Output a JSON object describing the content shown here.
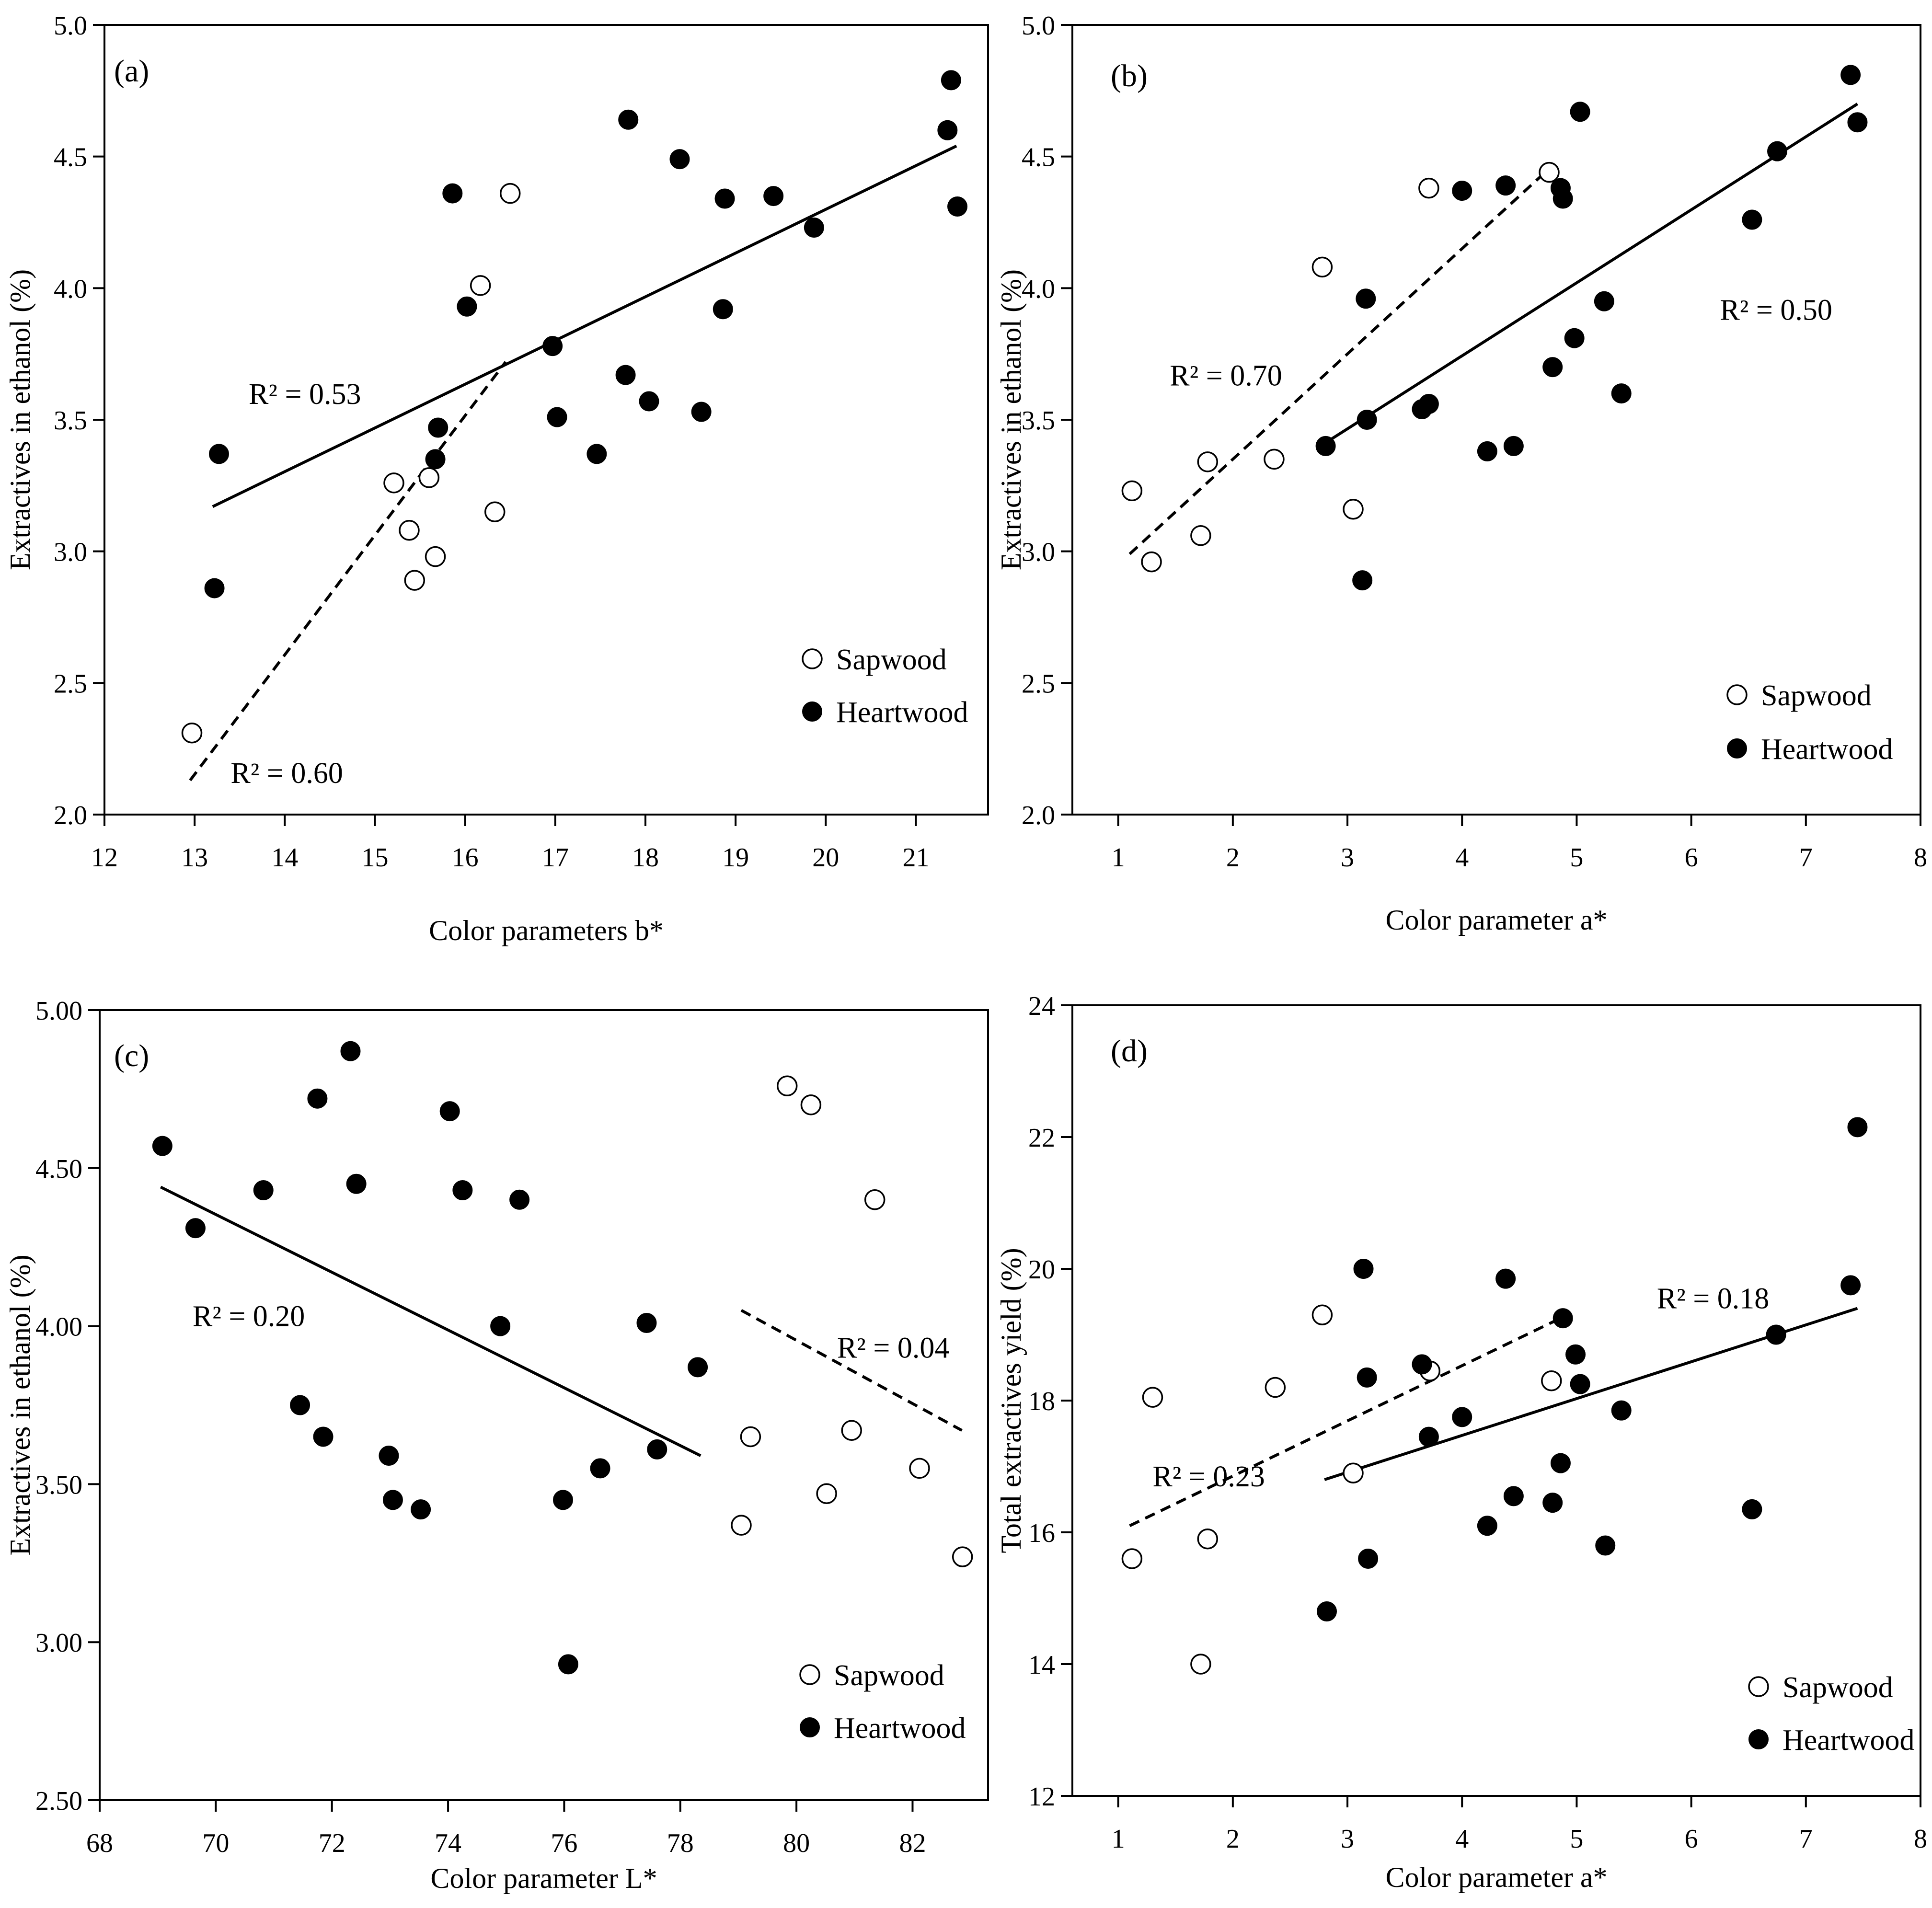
{
  "chart_data": [
    {
      "id": "a",
      "type": "scatter",
      "panel_label": "(a)",
      "xlabel": "Color parameters b*",
      "ylabel": "Extractives in ethanol (%)",
      "xlim": [
        12,
        21.8
      ],
      "ylim": [
        2.0,
        5.0
      ],
      "xticks": [
        12,
        13,
        14,
        15,
        16,
        17,
        18,
        19,
        20,
        21
      ],
      "yticks": [
        2.0,
        2.5,
        3.0,
        3.5,
        4.0,
        4.5,
        5.0
      ],
      "xtick_labels": [
        "12",
        "13",
        "14",
        "15",
        "16",
        "17",
        "18",
        "19",
        "20",
        "21"
      ],
      "ytick_labels": [
        "2.0",
        "2.5",
        "3.0",
        "3.5",
        "4.0",
        "4.5",
        "5.0"
      ],
      "legend": {
        "position": "bottom-right",
        "sapwood": "Sapwood",
        "heartwood": "Heartwood"
      },
      "series": [
        {
          "name": "Sapwood",
          "marker": "open-circle",
          "points": [
            [
              12.97,
              2.31
            ],
            [
              15.21,
              3.26
            ],
            [
              15.38,
              3.08
            ],
            [
              15.44,
              2.89
            ],
            [
              15.6,
              3.28
            ],
            [
              15.67,
              2.98
            ],
            [
              16.17,
              4.01
            ],
            [
              16.33,
              3.15
            ],
            [
              16.5,
              4.36
            ]
          ]
        },
        {
          "name": "Heartwood",
          "marker": "filled-circle",
          "points": [
            [
              13.22,
              2.86
            ],
            [
              13.27,
              3.37
            ],
            [
              15.67,
              3.35
            ],
            [
              15.7,
              3.47
            ],
            [
              15.86,
              4.36
            ],
            [
              16.02,
              3.93
            ],
            [
              16.97,
              3.78
            ],
            [
              17.02,
              3.51
            ],
            [
              17.46,
              3.37
            ],
            [
              17.78,
              3.67
            ],
            [
              17.81,
              4.64
            ],
            [
              18.04,
              3.57
            ],
            [
              18.38,
              4.49
            ],
            [
              18.62,
              3.53
            ],
            [
              18.86,
              3.92
            ],
            [
              18.88,
              4.34
            ],
            [
              19.42,
              4.35
            ],
            [
              19.87,
              4.23
            ],
            [
              21.35,
              4.6
            ],
            [
              21.39,
              4.79
            ],
            [
              21.46,
              4.31
            ]
          ]
        }
      ],
      "fits": [
        {
          "series": "Heartwood",
          "style": "solid",
          "x": [
            13.2,
            21.45
          ],
          "y": [
            3.17,
            4.54
          ]
        },
        {
          "series": "Sapwood",
          "style": "dashed",
          "x": [
            12.95,
            16.45
          ],
          "y": [
            2.13,
            3.72
          ]
        }
      ],
      "annotations": [
        {
          "text": "R² = 0.53",
          "x": 13.6,
          "y": 3.56
        },
        {
          "text": "R² = 0.60",
          "x": 13.4,
          "y": 2.12
        }
      ]
    },
    {
      "id": "b",
      "type": "scatter",
      "panel_label": "(b)",
      "xlabel": "Color parameter a*",
      "ylabel": "Extractives in ethanol (%)",
      "xlim": [
        0.6,
        8.0
      ],
      "ylim": [
        2.0,
        5.0
      ],
      "xticks": [
        1,
        2,
        3,
        4,
        5,
        6,
        7,
        8
      ],
      "yticks": [
        2.0,
        2.5,
        3.0,
        3.5,
        4.0,
        4.5,
        5.0
      ],
      "xtick_labels": [
        "1",
        "2",
        "3",
        "4",
        "5",
        "6",
        "7",
        "8"
      ],
      "ytick_labels": [
        "2.0",
        "2.5",
        "3.0",
        "3.5",
        "4.0",
        "4.5",
        "5.0"
      ],
      "legend": {
        "position": "bottom-right",
        "sapwood": "Sapwood",
        "heartwood": "Heartwood"
      },
      "series": [
        {
          "name": "Sapwood",
          "marker": "open-circle",
          "points": [
            [
              1.12,
              3.23
            ],
            [
              1.29,
              2.96
            ],
            [
              1.72,
              3.06
            ],
            [
              1.78,
              3.34
            ],
            [
              2.36,
              3.35
            ],
            [
              2.78,
              4.08
            ],
            [
              3.05,
              3.16
            ],
            [
              3.71,
              4.38
            ],
            [
              4.76,
              4.44
            ]
          ]
        },
        {
          "name": "Heartwood",
          "marker": "filled-circle",
          "points": [
            [
              2.81,
              3.4
            ],
            [
              3.13,
              2.89
            ],
            [
              3.16,
              3.96
            ],
            [
              3.17,
              3.5
            ],
            [
              3.65,
              3.54
            ],
            [
              3.71,
              3.56
            ],
            [
              4.0,
              4.37
            ],
            [
              4.22,
              3.38
            ],
            [
              4.38,
              4.39
            ],
            [
              4.45,
              3.4
            ],
            [
              4.79,
              3.7
            ],
            [
              4.86,
              4.38
            ],
            [
              4.88,
              4.34
            ],
            [
              4.98,
              3.81
            ],
            [
              5.03,
              4.67
            ],
            [
              5.24,
              3.95
            ],
            [
              5.39,
              3.6
            ],
            [
              6.53,
              4.26
            ],
            [
              6.75,
              4.52
            ],
            [
              7.39,
              4.81
            ],
            [
              7.45,
              4.63
            ]
          ]
        }
      ],
      "fits": [
        {
          "series": "Heartwood",
          "style": "solid",
          "x": [
            2.8,
            7.45
          ],
          "y": [
            3.41,
            4.7
          ]
        },
        {
          "series": "Sapwood",
          "style": "dashed",
          "x": [
            1.1,
            4.8
          ],
          "y": [
            2.99,
            4.47
          ]
        }
      ],
      "annotations": [
        {
          "text": "R² = 0.70",
          "x": 1.45,
          "y": 3.63
        },
        {
          "text": "R² = 0.50",
          "x": 6.25,
          "y": 3.88
        }
      ]
    },
    {
      "id": "c",
      "type": "scatter",
      "panel_label": "(c)",
      "xlabel": "Color parameter L*",
      "ylabel": "Extractives in ethanol (%)",
      "xlim": [
        68,
        83.3
      ],
      "ylim": [
        2.5,
        5.0
      ],
      "xticks": [
        68,
        70,
        72,
        74,
        76,
        78,
        80,
        82
      ],
      "yticks": [
        2.5,
        3.0,
        3.5,
        4.0,
        4.5,
        5.0
      ],
      "xtick_labels": [
        "68",
        "70",
        "72",
        "74",
        "76",
        "78",
        "80",
        "82"
      ],
      "ytick_labels": [
        "2.50",
        "3.00",
        "3.50",
        "4.00",
        "4.50",
        "5.00"
      ],
      "legend": {
        "position": "bottom-right",
        "sapwood": "Sapwood",
        "heartwood": "Heartwood"
      },
      "series": [
        {
          "name": "Sapwood",
          "marker": "open-circle",
          "points": [
            [
              79.05,
              3.37
            ],
            [
              79.21,
              3.65
            ],
            [
              79.84,
              4.76
            ],
            [
              80.25,
              4.7
            ],
            [
              80.52,
              3.47
            ],
            [
              80.95,
              3.67
            ],
            [
              81.35,
              4.4
            ],
            [
              82.12,
              3.55
            ],
            [
              82.86,
              3.27
            ]
          ]
        },
        {
          "name": "Heartwood",
          "marker": "filled-circle",
          "points": [
            [
              69.08,
              4.57
            ],
            [
              69.65,
              4.31
            ],
            [
              70.82,
              4.43
            ],
            [
              71.45,
              3.75
            ],
            [
              71.75,
              4.72
            ],
            [
              71.85,
              3.65
            ],
            [
              72.32,
              4.87
            ],
            [
              72.42,
              4.45
            ],
            [
              72.98,
              3.59
            ],
            [
              73.05,
              3.45
            ],
            [
              73.53,
              3.42
            ],
            [
              74.03,
              4.68
            ],
            [
              74.25,
              4.43
            ],
            [
              74.9,
              4.0
            ],
            [
              75.23,
              4.4
            ],
            [
              75.98,
              3.45
            ],
            [
              76.07,
              2.93
            ],
            [
              76.62,
              3.55
            ],
            [
              77.42,
              4.01
            ],
            [
              77.6,
              3.61
            ],
            [
              78.3,
              3.87
            ]
          ]
        }
      ],
      "fits": [
        {
          "series": "Heartwood",
          "style": "solid",
          "x": [
            69.05,
            78.35
          ],
          "y": [
            4.44,
            3.59
          ]
        },
        {
          "series": "Sapwood",
          "style": "dashed",
          "x": [
            79.05,
            82.85
          ],
          "y": [
            4.05,
            3.67
          ]
        }
      ],
      "annotations": [
        {
          "text": "R² = 0.20",
          "x": 69.6,
          "y": 4.0
        },
        {
          "text": "R² = 0.04",
          "x": 80.7,
          "y": 3.9
        }
      ]
    },
    {
      "id": "d",
      "type": "scatter",
      "panel_label": "(d)",
      "xlabel": "Color parameter a*",
      "ylabel": "Total extractives yield (%)",
      "xlim": [
        0.6,
        8.0
      ],
      "ylim": [
        12,
        24
      ],
      "xticks": [
        1,
        2,
        3,
        4,
        5,
        6,
        7,
        8
      ],
      "yticks": [
        12,
        14,
        16,
        18,
        20,
        22,
        24
      ],
      "xtick_labels": [
        "1",
        "2",
        "3",
        "4",
        "5",
        "6",
        "7",
        "8"
      ],
      "ytick_labels": [
        "12",
        "14",
        "16",
        "18",
        "20",
        "22",
        "24"
      ],
      "legend": {
        "position": "bottom-right",
        "sapwood": "Sapwood",
        "heartwood": "Heartwood"
      },
      "series": [
        {
          "name": "Sapwood",
          "marker": "open-circle",
          "points": [
            [
              1.12,
              15.6
            ],
            [
              1.3,
              18.05
            ],
            [
              1.72,
              14.0
            ],
            [
              1.78,
              15.9
            ],
            [
              2.37,
              18.2
            ],
            [
              2.78,
              19.3
            ],
            [
              3.05,
              16.9
            ],
            [
              3.72,
              18.45
            ],
            [
              4.78,
              18.3
            ]
          ]
        },
        {
          "name": "Heartwood",
          "marker": "filled-circle",
          "points": [
            [
              2.82,
              14.8
            ],
            [
              3.14,
              20.0
            ],
            [
              3.17,
              18.35
            ],
            [
              3.18,
              15.6
            ],
            [
              3.65,
              18.55
            ],
            [
              3.71,
              17.45
            ],
            [
              4.0,
              17.75
            ],
            [
              4.22,
              16.1
            ],
            [
              4.38,
              19.85
            ],
            [
              4.45,
              16.55
            ],
            [
              4.79,
              16.45
            ],
            [
              4.86,
              17.05
            ],
            [
              4.88,
              19.25
            ],
            [
              4.99,
              18.7
            ],
            [
              5.03,
              18.25
            ],
            [
              5.25,
              15.8
            ],
            [
              5.39,
              17.85
            ],
            [
              6.53,
              16.35
            ],
            [
              6.74,
              19.0
            ],
            [
              7.39,
              19.75
            ],
            [
              7.45,
              22.15
            ]
          ]
        }
      ],
      "fits": [
        {
          "series": "Heartwood",
          "style": "solid",
          "x": [
            2.8,
            7.45
          ],
          "y": [
            16.8,
            19.4
          ]
        },
        {
          "series": "Sapwood",
          "style": "dashed",
          "x": [
            1.1,
            4.8
          ],
          "y": [
            16.1,
            19.2
          ]
        }
      ],
      "annotations": [
        {
          "text": "R² = 0.18",
          "x": 5.7,
          "y": 19.4
        },
        {
          "text": "R² = 0.23",
          "x": 1.3,
          "y": 16.7
        }
      ]
    }
  ]
}
